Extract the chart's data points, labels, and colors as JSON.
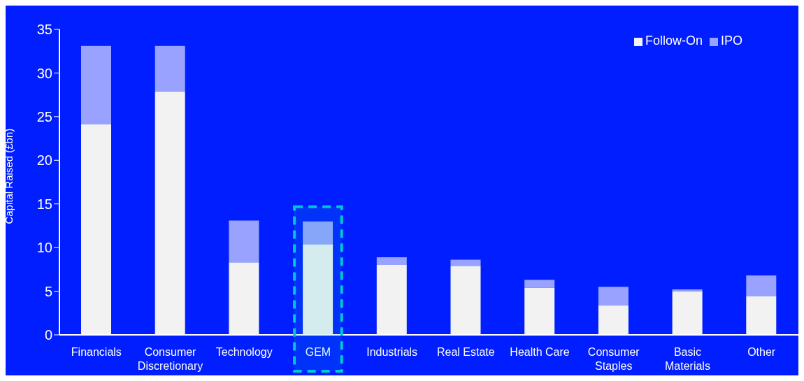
{
  "chart_data": {
    "type": "bar",
    "stacked": true,
    "ylabel": "Capital Raised (£bn)",
    "categories": [
      "Financials",
      "Consumer Discretionary",
      "Technology",
      "GEM",
      "Industrials",
      "Real Estate",
      "Health Care",
      "Consumer Staples",
      "Basic Materials",
      "Other"
    ],
    "series": [
      {
        "name": "Follow-On",
        "color": "#f2f2f2",
        "values": [
          24.1,
          27.9,
          8.3,
          10.4,
          8.0,
          7.9,
          5.4,
          3.4,
          5.0,
          4.4
        ]
      },
      {
        "name": "IPO",
        "color": "#99a3ff",
        "values": [
          9.0,
          5.2,
          4.8,
          2.6,
          0.9,
          0.7,
          0.9,
          2.1,
          0.2,
          2.4
        ]
      }
    ],
    "ylim": [
      0,
      35
    ],
    "yticks": [
      0,
      5,
      10,
      15,
      20,
      25,
      30,
      35
    ],
    "grid": false,
    "legend": "top right",
    "bands": [
      {
        "axis": "x",
        "from": "GEM",
        "to": "GEM",
        "color": "#00c8d0"
      }
    ]
  }
}
